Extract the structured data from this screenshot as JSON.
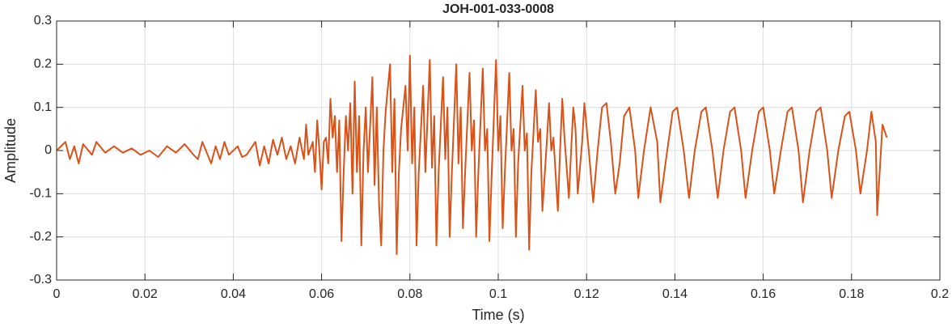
{
  "chart_data": {
    "type": "line",
    "title": "JOH-001-033-0008",
    "x_label": "Time (s)",
    "y_label": "Amplitude",
    "xlim": [
      0,
      0.2
    ],
    "xticks": [
      0,
      0.02,
      0.04,
      0.06,
      0.08,
      0.1,
      0.12,
      0.14,
      0.16,
      0.18,
      0.2
    ],
    "ylim": [
      -0.3,
      0.3
    ],
    "yticks": [
      -0.3,
      -0.2,
      -0.1,
      0,
      0.1,
      0.2,
      0.3
    ],
    "grid": true,
    "x": [
      0,
      0.002,
      0.003,
      0.004,
      0.005,
      0.006,
      0.008,
      0.009,
      0.011,
      0.013,
      0.015,
      0.017,
      0.019,
      0.021,
      0.023,
      0.025,
      0.027,
      0.029,
      0.031,
      0.032,
      0.033,
      0.034,
      0.035,
      0.036,
      0.037,
      0.038,
      0.039,
      0.041,
      0.042,
      0.043,
      0.045,
      0.046,
      0.047,
      0.048,
      0.049,
      0.05,
      0.051,
      0.052,
      0.053,
      0.054,
      0.055,
      0.056,
      0.0565,
      0.057,
      0.058,
      0.0585,
      0.059,
      0.0595,
      0.06,
      0.0605,
      0.061,
      0.0615,
      0.062,
      0.0625,
      0.063,
      0.0635,
      0.064,
      0.0645,
      0.065,
      0.0655,
      0.066,
      0.0665,
      0.067,
      0.0675,
      0.068,
      0.0685,
      0.069,
      0.0695,
      0.07,
      0.0705,
      0.0715,
      0.072,
      0.0725,
      0.073,
      0.0735,
      0.074,
      0.0745,
      0.0755,
      0.076,
      0.0765,
      0.077,
      0.0775,
      0.078,
      0.079,
      0.0795,
      0.08,
      0.0805,
      0.081,
      0.0815,
      0.082,
      0.083,
      0.0835,
      0.0845,
      0.085,
      0.0855,
      0.086,
      0.0865,
      0.0875,
      0.088,
      0.0885,
      0.089,
      0.0895,
      0.0905,
      0.091,
      0.0915,
      0.092,
      0.0925,
      0.0935,
      0.094,
      0.0945,
      0.095,
      0.0955,
      0.0965,
      0.097,
      0.0975,
      0.098,
      0.0985,
      0.0995,
      0.1,
      0.1005,
      0.101,
      0.1015,
      0.1025,
      0.103,
      0.1035,
      0.104,
      0.1045,
      0.1055,
      0.106,
      0.1065,
      0.107,
      0.1075,
      0.1085,
      0.109,
      0.1095,
      0.11,
      0.111,
      0.1115,
      0.112,
      0.1125,
      0.1135,
      0.114,
      0.1145,
      0.115,
      0.116,
      0.1165,
      0.117,
      0.1175,
      0.118,
      0.119,
      0.1195,
      0.1205,
      0.1215,
      0.1225,
      0.1235,
      0.1245,
      0.1255,
      0.1265,
      0.1275,
      0.1285,
      0.1297,
      0.131,
      0.1317,
      0.133,
      0.1345,
      0.136,
      0.1367,
      0.138,
      0.1395,
      0.1405,
      0.142,
      0.1432,
      0.1445,
      0.146,
      0.147,
      0.1485,
      0.1497,
      0.151,
      0.1525,
      0.1535,
      0.155,
      0.156,
      0.1575,
      0.159,
      0.16,
      0.1615,
      0.1625,
      0.164,
      0.1655,
      0.1665,
      0.168,
      0.169,
      0.1705,
      0.172,
      0.173,
      0.1745,
      0.1755,
      0.177,
      0.1785,
      0.1795,
      0.181,
      0.182,
      0.1835,
      0.1845,
      0.1855,
      0.1858,
      0.187,
      0.188
    ],
    "series": [
      {
        "name": "Amplitude",
        "color": "#d95319",
        "values": [
          0,
          0.02,
          -0.02,
          0.01,
          -0.03,
          0.015,
          -0.01,
          0.02,
          -0.005,
          0.01,
          -0.005,
          0.005,
          -0.01,
          0,
          -0.015,
          0.01,
          -0.005,
          0.015,
          -0.01,
          -0.02,
          0.02,
          -0.005,
          -0.03,
          0.01,
          -0.02,
          0.02,
          -0.01,
          0.01,
          -0.015,
          -0.01,
          0.02,
          -0.035,
          0.01,
          -0.03,
          0.025,
          -0.01,
          0.03,
          -0.02,
          0.01,
          -0.03,
          0.03,
          -0.02,
          0.06,
          -0.01,
          0.02,
          -0.05,
          0.07,
          0,
          -0.09,
          0.02,
          0.03,
          -0.03,
          0.12,
          0.03,
          0.08,
          -0.05,
          0.07,
          -0.21,
          -0.05,
          0.08,
          0,
          0.11,
          -0.1,
          0.16,
          -0.05,
          0.08,
          -0.22,
          0,
          0.1,
          -0.05,
          0.17,
          -0.08,
          0.1,
          -0.12,
          -0.22,
          0,
          0.09,
          0.2,
          -0.05,
          0.12,
          -0.24,
          -0.05,
          0.05,
          0.15,
          0,
          0.22,
          -0.03,
          0.1,
          -0.22,
          -0.05,
          0.15,
          -0.05,
          0.21,
          -0.04,
          0.08,
          -0.22,
          -0.05,
          0.17,
          -0.02,
          0.1,
          -0.2,
          -0.05,
          0.2,
          -0.03,
          0.1,
          -0.18,
          -0.05,
          0.18,
          0,
          0.07,
          -0.2,
          -0.05,
          0.19,
          0,
          0.05,
          -0.21,
          -0.06,
          0.21,
          0,
          0.08,
          -0.18,
          -0.05,
          0.18,
          0,
          0.05,
          -0.2,
          -0.03,
          0.15,
          0,
          0.04,
          -0.23,
          -0.05,
          0.14,
          0.02,
          0.05,
          -0.14,
          0.02,
          0.11,
          0,
          0.03,
          -0.14,
          0,
          0.12,
          0.03,
          -0.11,
          0,
          0.1,
          0.05,
          -0.1,
          0.02,
          0.11,
          0,
          -0.12,
          0,
          0.1,
          0.11,
          0.02,
          -0.1,
          -0.03,
          0.08,
          0.1,
          0,
          -0.11,
          0,
          0.1,
          0.02,
          -0.12,
          -0.02,
          0.09,
          0.1,
          0,
          -0.11,
          0,
          0.09,
          0.1,
          0,
          -0.11,
          0,
          0.09,
          0.1,
          0,
          -0.11,
          0,
          0.09,
          0.1,
          0,
          -0.1,
          0,
          0.09,
          0.1,
          0,
          -0.12,
          0,
          0.09,
          0.1,
          0,
          -0.11,
          0,
          0.08,
          0.09,
          0,
          -0.1,
          0,
          0.09,
          0.02,
          -0.15,
          0.06,
          0.03
        ]
      }
    ]
  }
}
